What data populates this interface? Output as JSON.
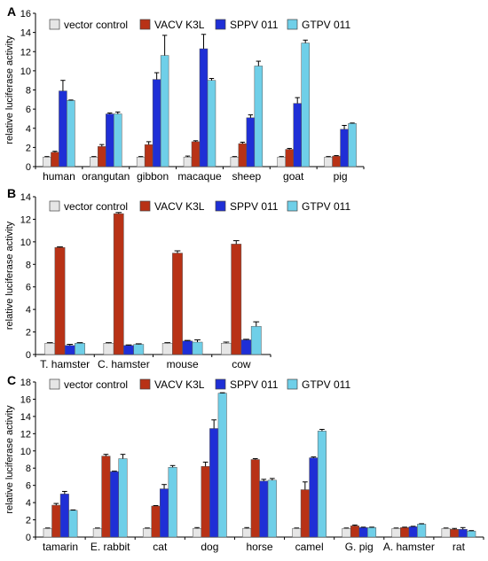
{
  "legend": {
    "items": [
      {
        "label": "vector control",
        "color": "#e6e6e6"
      },
      {
        "label": "VACV K3L",
        "color": "#b83216"
      },
      {
        "label": "SPPV 011",
        "color": "#1f2fd6"
      },
      {
        "label": "GTPV 011",
        "color": "#6fcfe8"
      }
    ]
  },
  "chart_data": [
    {
      "type": "bar",
      "panel_label": "A",
      "ylabel": "relative luciferase activity",
      "ylim": [
        0,
        16
      ],
      "yticks": [
        "0",
        "2",
        "4",
        "6",
        "8",
        "10",
        "12",
        "14",
        "16"
      ],
      "categories": [
        "human",
        "orangutan",
        "gibbon",
        "macaque",
        "sheep",
        "goat",
        "pig"
      ],
      "series": [
        {
          "name": "vector control",
          "values": [
            1,
            1,
            1,
            1,
            1,
            1,
            1
          ],
          "errors": [
            0.05,
            0.05,
            0.05,
            0.1,
            0.05,
            0.05,
            0.05
          ]
        },
        {
          "name": "VACV K3L",
          "values": [
            1.5,
            2.1,
            2.3,
            2.6,
            2.4,
            1.8,
            1.1
          ],
          "errors": [
            0.1,
            0.2,
            0.3,
            0.1,
            0.15,
            0.1,
            0.05
          ]
        },
        {
          "name": "SPPV 011",
          "values": [
            7.9,
            5.5,
            9.1,
            12.3,
            5.1,
            6.6,
            3.9
          ],
          "errors": [
            1.1,
            0.1,
            0.7,
            1.5,
            0.3,
            0.6,
            0.4
          ]
        },
        {
          "name": "GTPV 011",
          "values": [
            6.9,
            5.5,
            11.6,
            9.0,
            10.5,
            12.9,
            4.5
          ],
          "errors": [
            0.05,
            0.2,
            2.1,
            0.2,
            0.5,
            0.3,
            0.05
          ]
        }
      ]
    },
    {
      "type": "bar",
      "panel_label": "B",
      "ylabel": "relative luciferase activity",
      "ylim": [
        0,
        14
      ],
      "yticks": [
        "0",
        "2",
        "4",
        "6",
        "8",
        "10",
        "12",
        "14"
      ],
      "categories": [
        "T. hamster",
        "C. hamster",
        "mouse",
        "cow"
      ],
      "series": [
        {
          "name": "vector control",
          "values": [
            1,
            1,
            1,
            1
          ],
          "errors": [
            0.05,
            0.05,
            0.05,
            0.1
          ]
        },
        {
          "name": "VACV K3L",
          "values": [
            9.5,
            12.5,
            9.0,
            9.8
          ],
          "errors": [
            0.05,
            0.1,
            0.2,
            0.3
          ]
        },
        {
          "name": "SPPV 011",
          "values": [
            0.8,
            0.8,
            1.2,
            1.3
          ],
          "errors": [
            0.1,
            0.05,
            0.05,
            0.05
          ]
        },
        {
          "name": "GTPV 011",
          "values": [
            1.0,
            0.9,
            1.1,
            2.5
          ],
          "errors": [
            0.05,
            0.05,
            0.2,
            0.4
          ]
        }
      ]
    },
    {
      "type": "bar",
      "panel_label": "C",
      "ylabel": "relative luciferase activity",
      "ylim": [
        0,
        18
      ],
      "yticks": [
        "0",
        "2",
        "4",
        "6",
        "8",
        "10",
        "12",
        "14",
        "16",
        "18"
      ],
      "categories": [
        "tamarin",
        "E. rabbit",
        "cat",
        "dog",
        "horse",
        "camel",
        "G. pig",
        "A. hamster",
        "rat"
      ],
      "series": [
        {
          "name": "vector control",
          "values": [
            1,
            1,
            1,
            1,
            1,
            1,
            1,
            1,
            1
          ],
          "errors": [
            0.05,
            0.05,
            0.05,
            0.1,
            0.1,
            0.05,
            0.05,
            0.05,
            0.05
          ]
        },
        {
          "name": "VACV K3L",
          "values": [
            3.7,
            9.4,
            3.6,
            8.2,
            9.0,
            5.5,
            1.3,
            1.1,
            0.9
          ],
          "errors": [
            0.2,
            0.2,
            0.05,
            0.5,
            0.1,
            0.9,
            0.1,
            0.05,
            0.1
          ]
        },
        {
          "name": "SPPV 011",
          "values": [
            5.0,
            7.6,
            5.6,
            12.6,
            6.5,
            9.2,
            1.1,
            1.2,
            0.9
          ],
          "errors": [
            0.3,
            0.05,
            0.5,
            1.0,
            0.2,
            0.1,
            0.05,
            0.05,
            0.2
          ]
        },
        {
          "name": "GTPV 011",
          "values": [
            3.1,
            9.1,
            8.1,
            16.7,
            6.6,
            12.3,
            1.1,
            1.5,
            0.7
          ],
          "errors": [
            0.05,
            0.5,
            0.2,
            0.05,
            0.2,
            0.2,
            0.05,
            0.05,
            0.05
          ]
        }
      ]
    }
  ]
}
